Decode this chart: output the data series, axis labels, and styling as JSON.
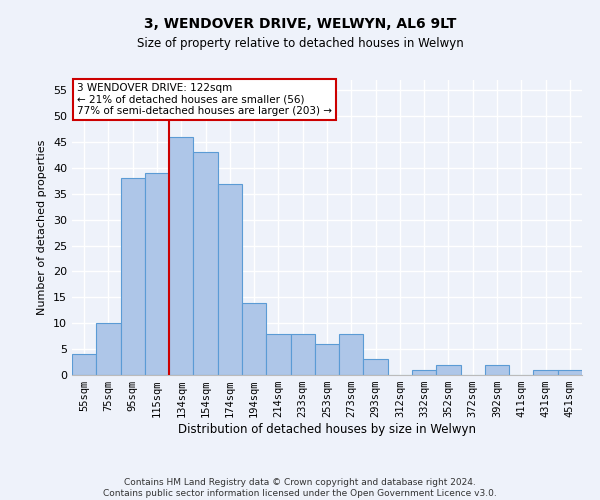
{
  "title1": "3, WENDOVER DRIVE, WELWYN, AL6 9LT",
  "title2": "Size of property relative to detached houses in Welwyn",
  "xlabel": "Distribution of detached houses by size in Welwyn",
  "ylabel": "Number of detached properties",
  "categories": [
    "55sqm",
    "75sqm",
    "95sqm",
    "115sqm",
    "134sqm",
    "154sqm",
    "174sqm",
    "194sqm",
    "214sqm",
    "233sqm",
    "253sqm",
    "273sqm",
    "293sqm",
    "312sqm",
    "332sqm",
    "352sqm",
    "372sqm",
    "392sqm",
    "411sqm",
    "431sqm",
    "451sqm"
  ],
  "values": [
    4,
    10,
    38,
    39,
    46,
    43,
    37,
    14,
    8,
    8,
    6,
    8,
    3,
    0,
    1,
    2,
    0,
    2,
    0,
    1,
    1
  ],
  "bar_color": "#aec6e8",
  "bar_edge_color": "#5b9bd5",
  "bar_width": 1.0,
  "vline_x": 3.5,
  "vline_color": "#cc0000",
  "ylim": [
    0,
    57
  ],
  "yticks": [
    0,
    5,
    10,
    15,
    20,
    25,
    30,
    35,
    40,
    45,
    50,
    55
  ],
  "annotation_text": "3 WENDOVER DRIVE: 122sqm\n← 21% of detached houses are smaller (56)\n77% of semi-detached houses are larger (203) →",
  "annotation_box_color": "#ffffff",
  "annotation_box_edge_color": "#cc0000",
  "footnote1": "Contains HM Land Registry data © Crown copyright and database right 2024.",
  "footnote2": "Contains public sector information licensed under the Open Government Licence v3.0.",
  "background_color": "#eef2fa",
  "grid_color": "#ffffff"
}
